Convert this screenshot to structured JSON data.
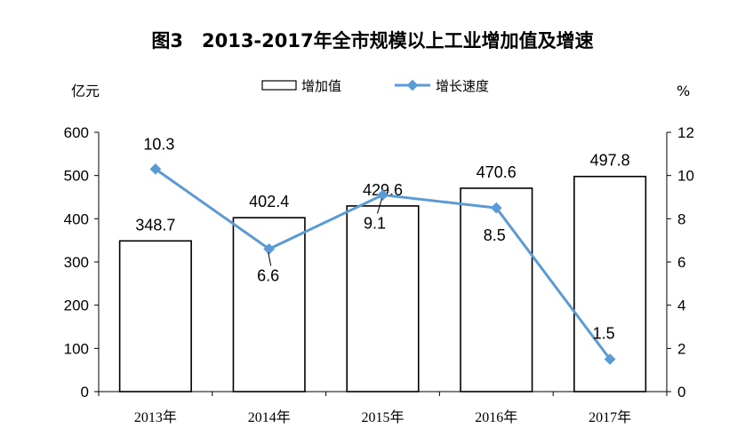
{
  "chart_data": {
    "type": "bar",
    "title": "图3　2013-2017年全市规模以上工业增加值及增速",
    "categories": [
      "2013年",
      "2014年",
      "2015年",
      "2016年",
      "2017年"
    ],
    "series": [
      {
        "name": "增加值",
        "type": "bar",
        "axis": "left",
        "values": [
          348.7,
          402.4,
          429.6,
          470.6,
          497.8
        ],
        "color": "#000000",
        "fill": "#ffffff"
      },
      {
        "name": "增长速度",
        "type": "line",
        "axis": "right",
        "values": [
          10.3,
          6.6,
          9.1,
          8.5,
          1.5
        ],
        "color": "#5b9bd5",
        "marker": "diamond"
      }
    ],
    "y_left": {
      "unit": "亿元",
      "ylim": [
        0,
        600
      ],
      "ticks": [
        0,
        100,
        200,
        300,
        400,
        500,
        600
      ]
    },
    "y_right": {
      "unit": "%",
      "ylim": [
        0,
        12
      ],
      "ticks": [
        0,
        2,
        4,
        6,
        8,
        10,
        12
      ]
    },
    "legend_position": "top-center",
    "grid": false
  }
}
